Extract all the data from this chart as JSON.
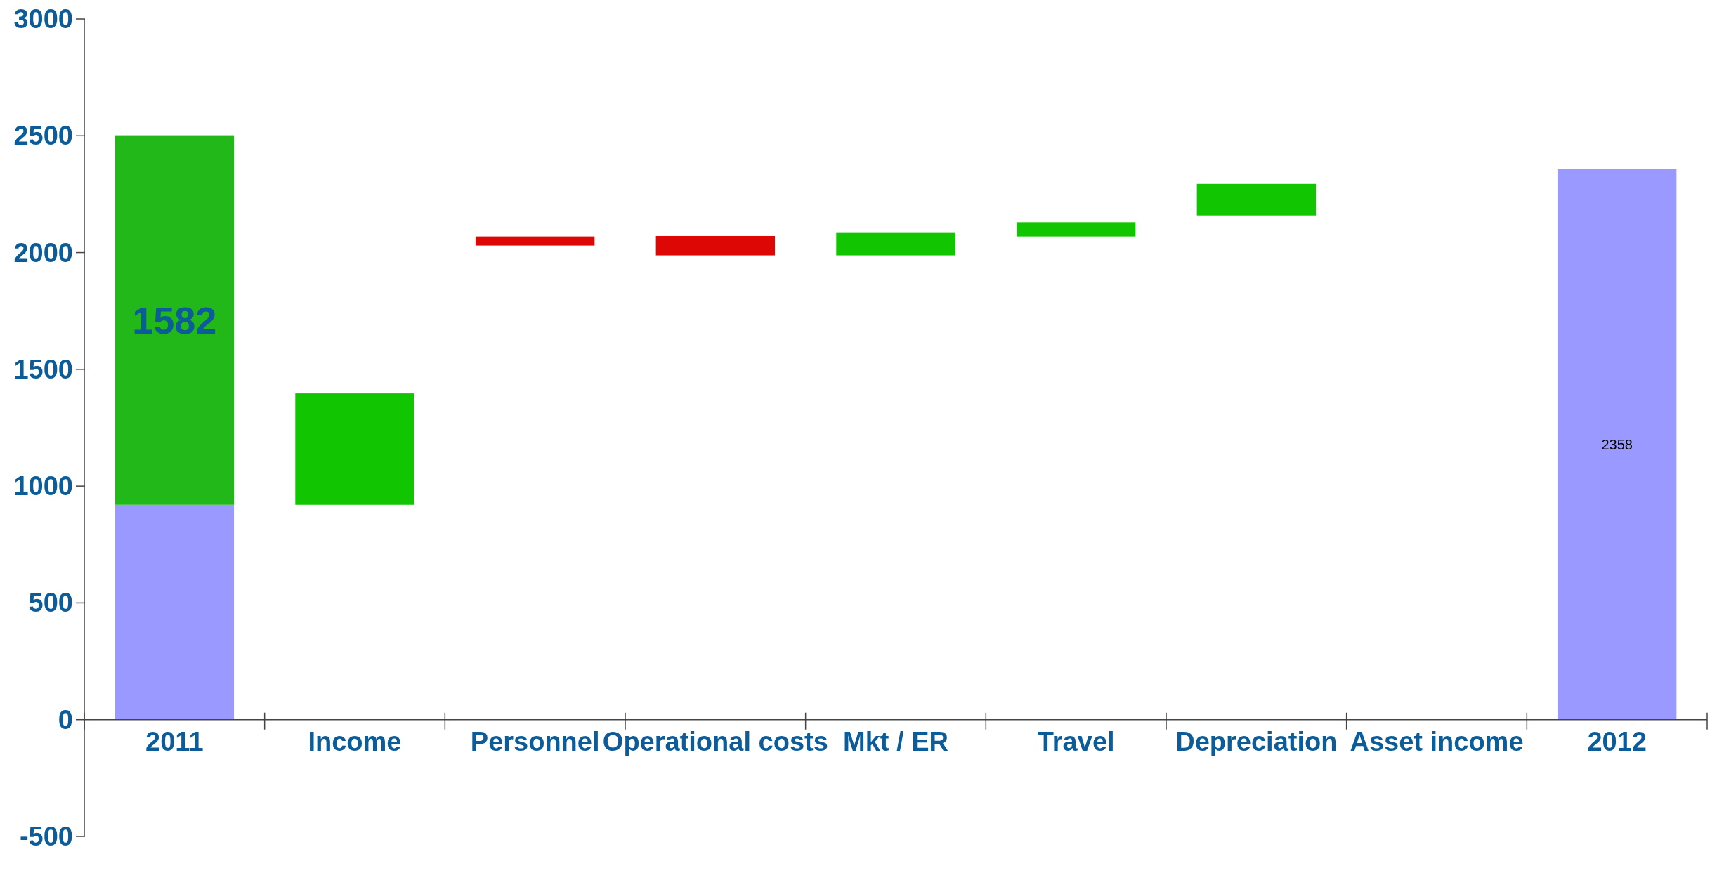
{
  "chart_data": {
    "type": "bar",
    "categories": [
      "2011",
      "Income",
      "Personnel",
      "Operational costs",
      "Mkt / ER",
      "Travel",
      "Depreciation",
      "Asset income",
      "2012"
    ],
    "ylim": [
      -500,
      3000
    ],
    "yticks": [
      -500,
      0,
      500,
      1000,
      1500,
      2000,
      2500,
      3000
    ],
    "series": [
      {
        "color": "#9999ff",
        "values": [
          920,
          null,
          null,
          null,
          null,
          null,
          null,
          null,
          2358
        ],
        "value_labels": [
          null,
          null,
          null,
          null,
          null,
          null,
          null,
          null,
          "2358"
        ]
      },
      {
        "colors": [
          "#22b81a",
          "#11c500",
          "#dd0805",
          "#dd0805",
          "#11c500",
          "#11c500",
          "#11c500",
          null,
          null
        ],
        "base": [
          920,
          920,
          2069,
          2071,
          1988,
          2069,
          2159,
          null,
          null
        ],
        "values": [
          1582,
          477,
          -39,
          -83,
          96,
          61,
          135,
          null,
          null
        ],
        "value_labels": [
          "1582",
          null,
          null,
          null,
          null,
          null,
          null,
          null,
          null
        ]
      }
    ]
  }
}
